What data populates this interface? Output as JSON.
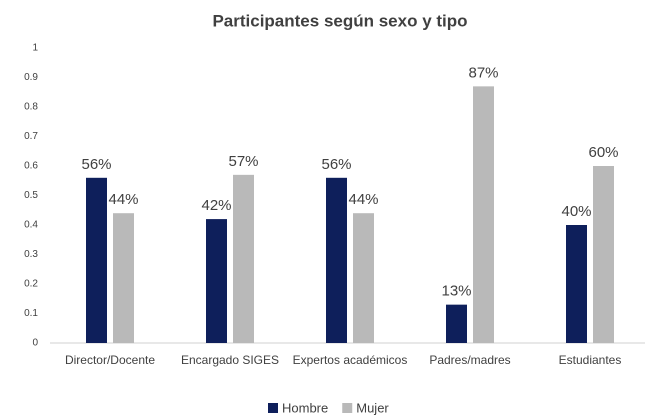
{
  "chart_data": {
    "type": "bar",
    "title": "Participantes según sexo y tipo",
    "categories": [
      "Director/Docente",
      "Encargado SIGES",
      "Expertos académicos",
      "Padres/madres",
      "Estudiantes"
    ],
    "series": [
      {
        "name": "Hombre",
        "color": "#0e1f5b",
        "values": [
          0.56,
          0.42,
          0.56,
          0.13,
          0.4
        ],
        "value_labels": [
          "56%",
          "42%",
          "56%",
          "13%",
          "40%"
        ]
      },
      {
        "name": "Mujer",
        "color": "#b9b9b9",
        "values": [
          0.44,
          0.57,
          0.44,
          0.87,
          0.6
        ],
        "value_labels": [
          "44%",
          "57%",
          "44%",
          "87%",
          "60%"
        ]
      }
    ],
    "ylim": [
      0,
      1
    ],
    "yticks": [
      0,
      0.1,
      0.2,
      0.3,
      0.4,
      0.5,
      0.6,
      0.7,
      0.8,
      0.9,
      1
    ],
    "grid": false,
    "legend": "bottom"
  }
}
